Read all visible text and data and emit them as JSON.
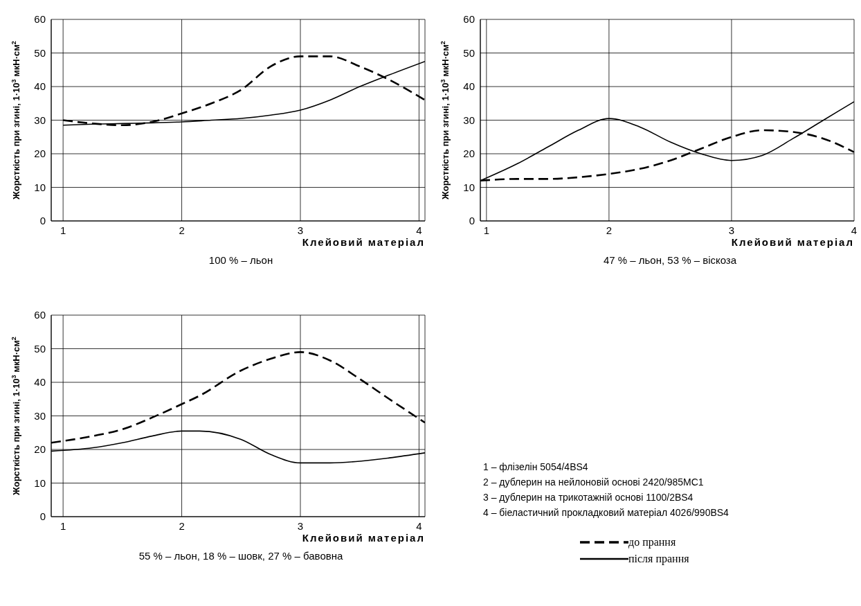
{
  "chart_data": [
    {
      "type": "line",
      "title": "100 % – льон",
      "xlabel": "Клейовий матеріал",
      "ylabel": "Жорсткість при згині, 1·10$^{3}$ мкН·см$^{2}$",
      "xlim": [
        0.9,
        4.05
      ],
      "xticks": [
        1,
        2,
        3,
        4
      ],
      "ylim": [
        0,
        60
      ],
      "yticks": [
        0,
        10,
        20,
        30,
        40,
        50,
        60
      ],
      "grid": true,
      "legend": false,
      "x": [
        1,
        1.25,
        1.5,
        1.75,
        2,
        2.25,
        2.5,
        2.75,
        3,
        3.25,
        3.5,
        3.75,
        4.05
      ],
      "series": [
        {
          "color": "#000000",
          "line_style": "dashed",
          "values": [
            30,
            29,
            28.5,
            29.5,
            32,
            35,
            39,
            46,
            49,
            49,
            46,
            42,
            36
          ]
        },
        {
          "color": "#000000",
          "line_style": "solid",
          "values": [
            28.5,
            28.8,
            29,
            29.2,
            29.5,
            30,
            30.5,
            31.5,
            33,
            36,
            40,
            43.5,
            47.5
          ]
        }
      ]
    },
    {
      "type": "line",
      "title": "47 % – льон, 53 % – віскоза",
      "xlabel": "Клейовий матеріал",
      "ylabel": "Жорсткість при згині, 1·10$^{3}$ мкН·см$^{2}$",
      "xlim": [
        0.95,
        4
      ],
      "xticks": [
        1,
        2,
        3,
        4
      ],
      "ylim": [
        0,
        60
      ],
      "yticks": [
        0,
        10,
        20,
        30,
        40,
        50,
        60
      ],
      "grid": true,
      "legend": false,
      "x": [
        0.95,
        1.25,
        1.5,
        1.75,
        2,
        2.25,
        2.5,
        2.75,
        3,
        3.25,
        3.5,
        3.75,
        4
      ],
      "series": [
        {
          "color": "#000000",
          "line_style": "dashed",
          "values": [
            12,
            12.5,
            12.5,
            13,
            14,
            15.5,
            18,
            21.5,
            25,
            27,
            26.5,
            24.5,
            20.5
          ]
        },
        {
          "color": "#000000",
          "line_style": "solid",
          "values": [
            12,
            17,
            22,
            27,
            30.5,
            28,
            23.5,
            20,
            18,
            19.5,
            24.5,
            30,
            35.5
          ]
        }
      ]
    },
    {
      "type": "line",
      "title": "55 % – льон, 18 % – шовк,  27 % – бавовна",
      "xlabel": "Клейовий матеріал",
      "ylabel": "Жорсткість при згині, 1·10$^{3}$ мкН·см$^{2}$",
      "xlim": [
        0.9,
        4.05
      ],
      "xticks": [
        1,
        2,
        3,
        4
      ],
      "ylim": [
        0,
        60
      ],
      "yticks": [
        0,
        10,
        20,
        30,
        40,
        50,
        60
      ],
      "grid": true,
      "legend": "bottom right",
      "x": [
        0.9,
        1.25,
        1.5,
        1.75,
        2,
        2.15,
        2.5,
        2.75,
        3,
        3.25,
        3.5,
        3.75,
        4.05
      ],
      "series": [
        {
          "name": "до прання",
          "color": "#000000",
          "line_style": "dashed",
          "values": [
            22,
            24,
            26,
            29.5,
            33.5,
            36,
            43.5,
            47,
            49,
            46.5,
            41,
            35,
            28
          ]
        },
        {
          "name": "після прання",
          "color": "#000000",
          "line_style": "solid",
          "values": [
            19.5,
            20.5,
            22,
            24,
            25.5,
            25.5,
            23,
            18.5,
            16,
            16,
            16.5,
            17.5,
            19
          ]
        }
      ],
      "annotations": [
        "1 – флізелін 5054/4BS4",
        "2 – дублерин на нейлоновій основі 2420/985МС1",
        "3 – дублерин на трикотажній основі 1100/2BS4",
        "4 – біеластичний прокладковий матеріал 4026/990BS4"
      ]
    }
  ]
}
